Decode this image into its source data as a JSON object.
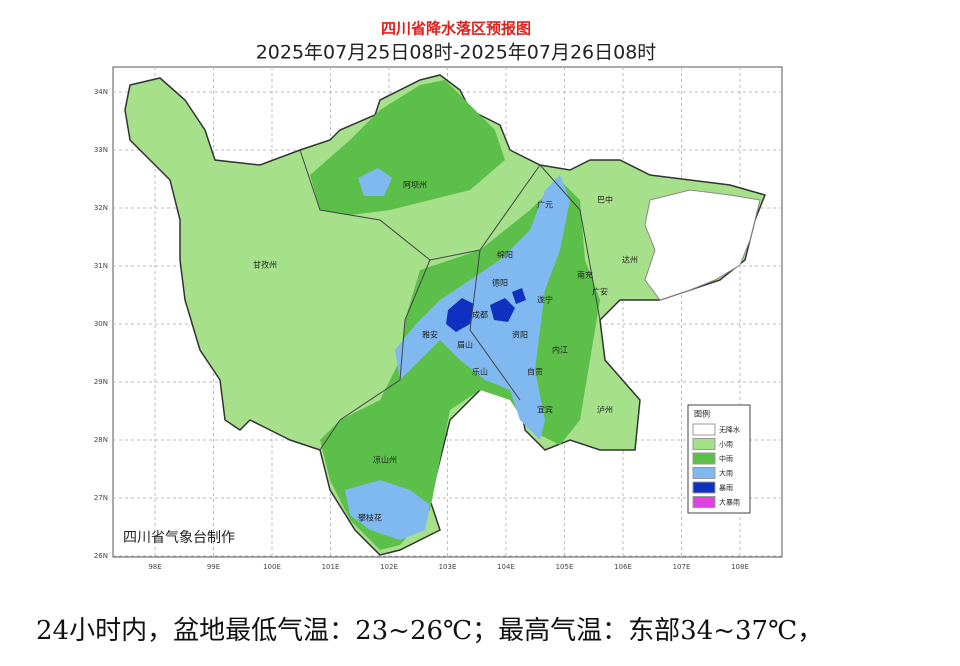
{
  "header": {
    "title": "四川省降水落区预报图",
    "subtitle": "2025年07月25日08时-2025年07月26日08时"
  },
  "map": {
    "latitude_labels": [
      "34N",
      "33N",
      "32N",
      "31N",
      "30N",
      "29N",
      "28N",
      "27N",
      "26N"
    ],
    "longitude_labels": [
      "98E",
      "99E",
      "100E",
      "101E",
      "102E",
      "103E",
      "104E",
      "105E",
      "106E",
      "107E",
      "108E"
    ],
    "places": [
      "广元",
      "巴中",
      "达州",
      "绵阳",
      "南充",
      "德阳",
      "成都",
      "遂宁",
      "广安",
      "雅安",
      "眉山",
      "资阳",
      "乐山",
      "内江",
      "自贡",
      "宜宾",
      "泸州",
      "甘孜州",
      "阿坝州",
      "凉山州",
      "攀枝花"
    ],
    "credit": "四川省气象台制作",
    "legend": {
      "title": "图例",
      "items": [
        "无降水",
        "小雨",
        "中雨",
        "大雨",
        "暴雨",
        "大暴雨"
      ]
    }
  },
  "footer": {
    "text": "24小时内，盆地最低气温：23~26℃；最高气温：东部34~37℃，"
  }
}
